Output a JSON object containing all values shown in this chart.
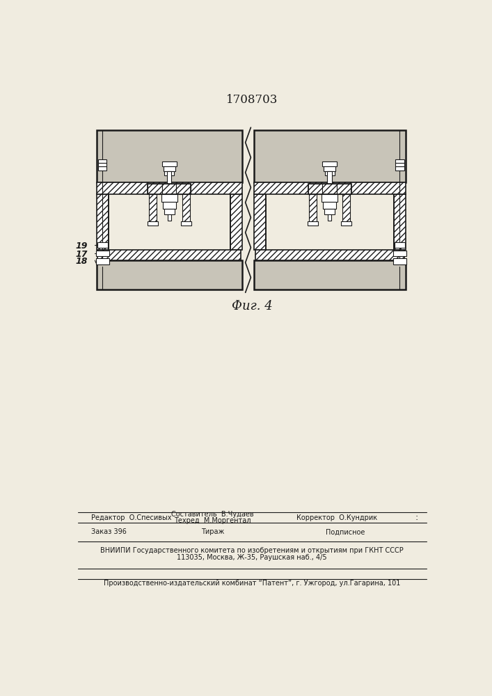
{
  "patent_number": "1708703",
  "figure_label": "Фиг. 4",
  "bg_color": "#f0ece0",
  "line_color": "#1a1a1a",
  "footer_editor": "Редактор  О.Спесивых",
  "footer_compiler": "Составитель  В.Чудаев",
  "footer_techred": "Техред  М.Моргентал",
  "footer_corrector": "Корректор  О.Кундрик",
  "footer_order": "Заказ 396",
  "footer_tirazh": "Тираж",
  "footer_podpisnoe": "Подписное",
  "footer_vniip1": "ВНИИПИ Государственного комитета по изобретениям и открытиям при ГКНТ СССР",
  "footer_vniip2": "113035, Москва, Ж-35, Раушская наб., 4/5",
  "footer_proizv": "Производственно-издательский комбинат “Патент”, г. Ужгород, ул.Гагарина, 101"
}
